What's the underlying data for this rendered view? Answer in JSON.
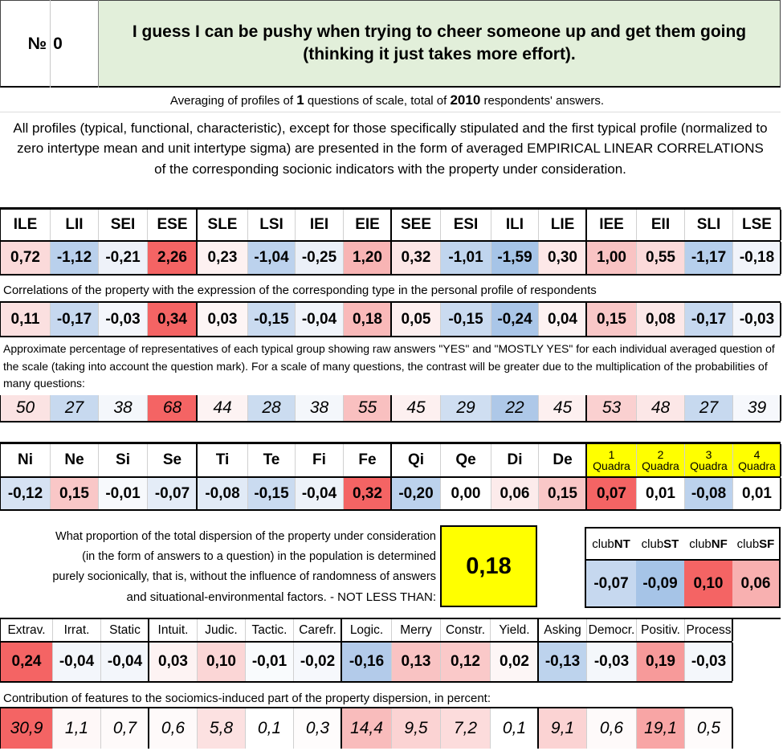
{
  "header": {
    "number_label": "№",
    "number_value": "0",
    "statement": "I guess I can be pushy when trying to cheer someone up and get them going (thinking it just takes more effort)."
  },
  "averaging": {
    "prefix": "Averaging of profiles of",
    "questions_count": "1",
    "middle": "questions of scale, total of",
    "respondents_count": "2010",
    "suffix": "respondents' answers."
  },
  "description": "All profiles (typical, functional, characteristic), except for those specifically stipulated and the first typical profile (normalized to zero intertype mean and unit intertype sigma) are presented in the form of averaged EMPIRICAL LINEAR CORRELATIONS of the corresponding socionic indicators with the property under consideration.",
  "types": {
    "headers": [
      "ILE",
      "LII",
      "SEI",
      "ESE",
      "SLE",
      "LSI",
      "IEI",
      "EIE",
      "SEE",
      "ESI",
      "ILI",
      "LIE",
      "IEE",
      "EII",
      "SLI",
      "LSE"
    ],
    "profile": [
      "0,72",
      "-1,12",
      "-0,21",
      "2,26",
      "0,23",
      "-1,04",
      "-0,25",
      "1,20",
      "0,32",
      "-1,01",
      "-1,59",
      "0,30",
      "1,00",
      "0,55",
      "-1,17",
      "-0,18"
    ],
    "profile_colors": [
      "#fbdada",
      "#b9d0ec",
      "#eef2f9",
      "#f46464",
      "#fdf1f1",
      "#bcd2ed",
      "#ebf0f8",
      "#f8b4b4",
      "#fce6e6",
      "#c0d5ee",
      "#a6c4e7",
      "#fde8e8",
      "#f9c3c3",
      "#fbdada",
      "#b6cfec",
      "#f1f4fa"
    ],
    "correlation_note": "Correlations of the property with the expression of the corresponding type in the personal profile of respondents",
    "correlations": [
      "0,11",
      "-0,17",
      "-0,03",
      "0,34",
      "0,03",
      "-0,15",
      "-0,04",
      "0,18",
      "0,05",
      "-0,15",
      "-0,24",
      "0,04",
      "0,15",
      "0,08",
      "-0,17",
      "-0,03"
    ],
    "correlation_colors": [
      "#fbe0e0",
      "#c6d8ef",
      "#f4f6fb",
      "#f46464",
      "#fdf5f5",
      "#cadbf0",
      "#f1f4fa",
      "#f9b9b9",
      "#fdefef",
      "#cadbf0",
      "#aac6e8",
      "#fdf2f2",
      "#f9c7c7",
      "#fce8e8",
      "#c6d8ef",
      "#f4f6fb"
    ],
    "percent_note": "Approximate percentage of representatives of each typical group showing raw answers \"YES\" and \"MOSTLY YES\" for each individual averaged question of the scale (taking into account the question mark). For a scale of many questions, the contrast will be greater due to the multiplication of the probabilities of many questions:",
    "percents": [
      "50",
      "27",
      "38",
      "68",
      "44",
      "28",
      "38",
      "55",
      "45",
      "29",
      "22",
      "45",
      "53",
      "48",
      "27",
      "39"
    ],
    "percent_colors": [
      "#fbe3e3",
      "#c7d9ef",
      "#f4f7fb",
      "#f46464",
      "#fdf3f3",
      "#cbdcf0",
      "#f4f7fb",
      "#f9c0c0",
      "#fdf0f0",
      "#cfdef1",
      "#aec8e8",
      "#fdf0f0",
      "#fad0d0",
      "#fce7e7",
      "#c7d9ef",
      "#f6f8fc"
    ]
  },
  "functions": {
    "headers": [
      "Ni",
      "Ne",
      "Si",
      "Se",
      "Ti",
      "Te",
      "Fi",
      "Fe",
      "Qi",
      "Qe",
      "Di",
      "De"
    ],
    "values": [
      "-0,12",
      "0,15",
      "-0,01",
      "-0,07",
      "-0,08",
      "-0,15",
      "-0,04",
      "0,32",
      "-0,20",
      "0,00",
      "0,06",
      "0,15"
    ],
    "colors": [
      "#d6e2f3",
      "#f9c7c7",
      "#f7f9fc",
      "#e4ecf7",
      "#e1eaf6",
      "#cadbf0",
      "#edf2f9",
      "#f46464",
      "#bcd2ed",
      "#ffffff",
      "#fcebeb",
      "#f9c7c7"
    ]
  },
  "quadras": {
    "numbers": [
      "1",
      "2",
      "3",
      "4"
    ],
    "label": "Quadra",
    "values": [
      "0,07",
      "0,01",
      "-0,08",
      "0,01"
    ],
    "colors": [
      "#f46464",
      "#ffffff",
      "#bcd2ed",
      "#ffffff"
    ],
    "header_color": "#ffff00"
  },
  "dispersion": {
    "text_lines": [
      "What proportion of the total dispersion of the property under consideration",
      "(in the form of answers to a question) in the population is determined",
      "purely socionically, that is, without the influence of randomness of answers",
      "and situational-environmental factors. - NOT LESS THAN:"
    ],
    "value": "0,18",
    "value_color": "#ffff00"
  },
  "clubs": {
    "prefix": "club",
    "suffixes": [
      "NT",
      "ST",
      "NF",
      "SF"
    ],
    "values": [
      "-0,07",
      "-0,09",
      "0,10",
      "0,06"
    ],
    "colors": [
      "#c6d8ef",
      "#a6c4e7",
      "#f46464",
      "#f8b0b0"
    ]
  },
  "features": {
    "headers": [
      "Extrav.",
      "Irrat.",
      "Static",
      "Intuit.",
      "Judic.",
      "Tactic.",
      "Carefr.",
      "Logic.",
      "Merry",
      "Constr.",
      "Yield.",
      "Asking",
      "Democr.",
      "Positiv.",
      "Process"
    ],
    "values": [
      "0,24",
      "-0,04",
      "-0,04",
      "0,03",
      "0,10",
      "-0,01",
      "-0,02",
      "-0,16",
      "0,13",
      "0,12",
      "0,02",
      "-0,13",
      "-0,03",
      "0,19",
      "-0,03"
    ],
    "colors": [
      "#f46464",
      "#f3f6fb",
      "#f3f6fb",
      "#fdf3f3",
      "#fbd6d6",
      "#f9fbfd",
      "#f6f8fc",
      "#b3cbea",
      "#f9c3c3",
      "#fac9c9",
      "#fdf6f6",
      "#bdd3ed",
      "#f4f7fb",
      "#f79a9a",
      "#f4f7fb"
    ],
    "contribution_note": "Contribution of features to the sociomics-induced part of the property dispersion, in percent:",
    "contributions": [
      "30,9",
      "1,1",
      "0,7",
      "0,6",
      "5,8",
      "0,1",
      "0,3",
      "14,4",
      "9,5",
      "7,2",
      "0,1",
      "9,1",
      "0,6",
      "19,1",
      "0,5"
    ],
    "contribution_colors": [
      "#f46464",
      "#fef8f8",
      "#fefafa",
      "#fefafa",
      "#fce1e1",
      "#ffffff",
      "#fefcfc",
      "#f9bcbc",
      "#fbd3d3",
      "#fcdcdc",
      "#ffffff",
      "#fbd3d3",
      "#fefafa",
      "#f8a5a5",
      "#fefbfb"
    ]
  }
}
